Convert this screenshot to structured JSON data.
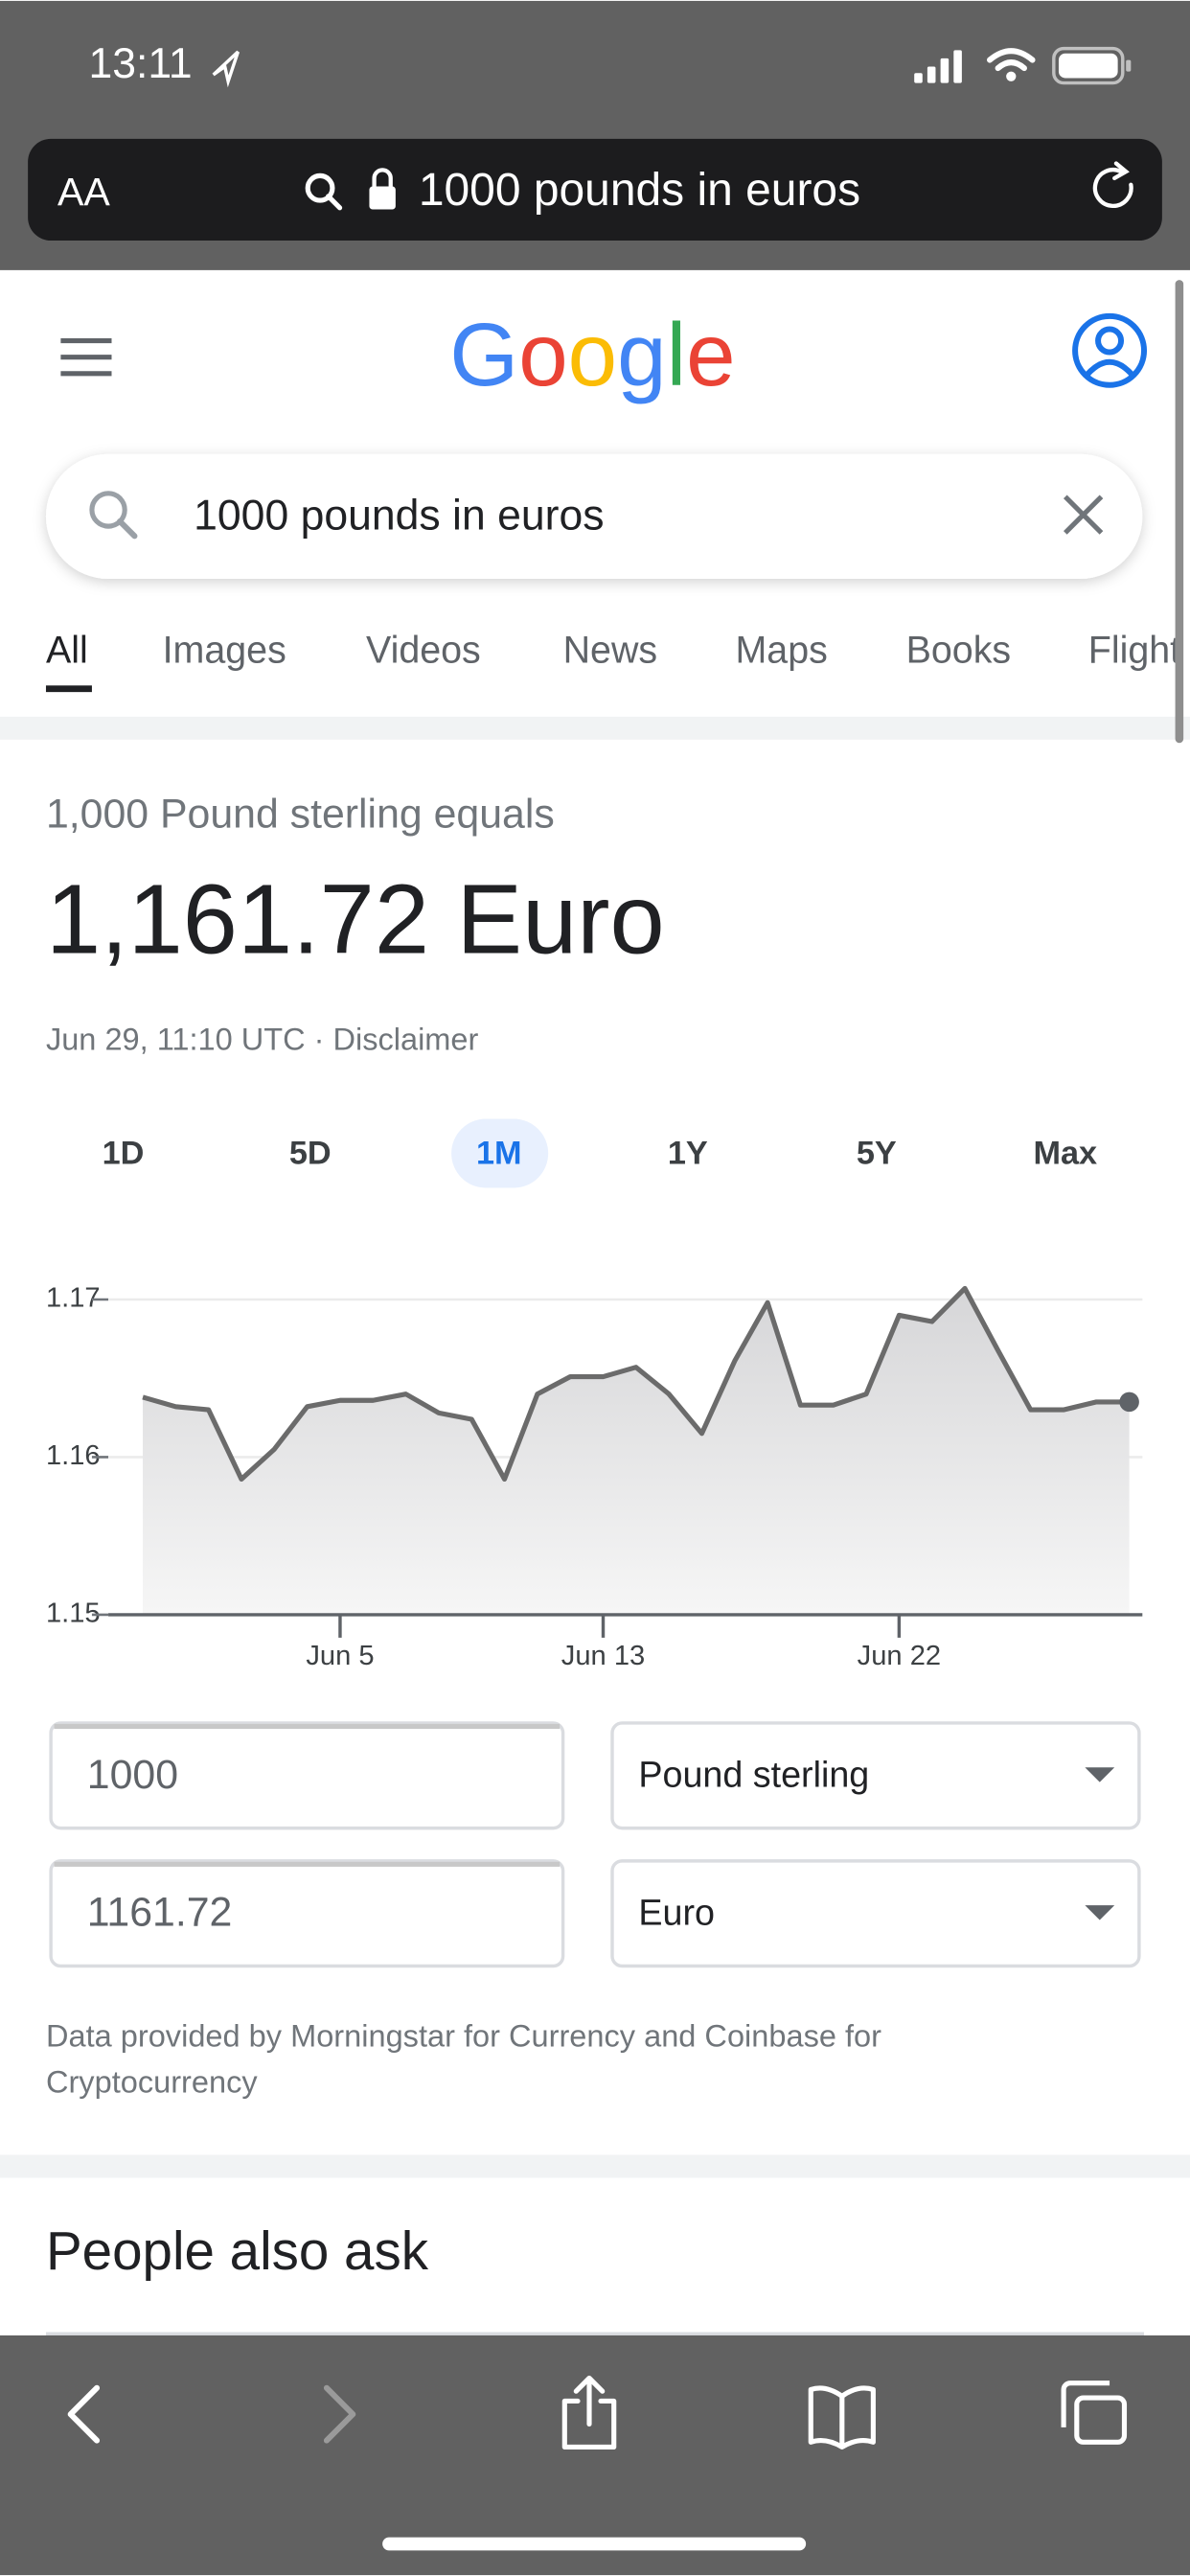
{
  "status_bar": {
    "time": "13:11"
  },
  "url_bar": {
    "text_size": "AA",
    "url": "1000 pounds in euros"
  },
  "google": {
    "logo": "Google"
  },
  "search": {
    "query": "1000 pounds in euros"
  },
  "tabs": [
    "All",
    "Images",
    "Videos",
    "News",
    "Maps",
    "Books",
    "Flights"
  ],
  "result": {
    "subtitle": "1,000 Pound sterling equals",
    "amount": "1,161.72 Euro",
    "timestamp": "Jun 29, 11:10 UTC · Disclaimer"
  },
  "ranges": [
    "1D",
    "5D",
    "1M",
    "1Y",
    "5Y",
    "Max"
  ],
  "chart_data": {
    "type": "area",
    "categories": [
      null,
      null,
      null,
      null,
      null,
      null,
      "Jun 5",
      null,
      null,
      null,
      null,
      null,
      null,
      null,
      "Jun 13",
      null,
      null,
      null,
      null,
      null,
      null,
      null,
      null,
      "Jun 22",
      null,
      null,
      null,
      null,
      null,
      null,
      null
    ],
    "values": [
      1.1638,
      1.1632,
      1.163,
      1.1586,
      1.1605,
      1.1632,
      1.1636,
      1.1636,
      1.164,
      1.1628,
      1.1624,
      1.1586,
      1.164,
      1.1651,
      1.1651,
      1.1657,
      1.164,
      1.1615,
      1.1661,
      1.1698,
      1.1633,
      1.1633,
      1.164,
      1.169,
      1.1686,
      1.1707,
      1.1668,
      1.163,
      1.163,
      1.1635,
      1.1635
    ],
    "color": "#6b6b6b",
    "ylim": [
      1.15,
      1.172
    ],
    "yticks": [
      1.15,
      1.16,
      1.17
    ],
    "grid": true
  },
  "converter": {
    "from_amount": "1000",
    "from_currency": "Pound sterling",
    "to_amount": "1161.72",
    "to_currency": "Euro"
  },
  "footer": {
    "note": "Data provided by Morningstar for Currency and Coinbase for Cryptocurrency"
  },
  "people_also_ask": {
    "title": "People also ask"
  }
}
